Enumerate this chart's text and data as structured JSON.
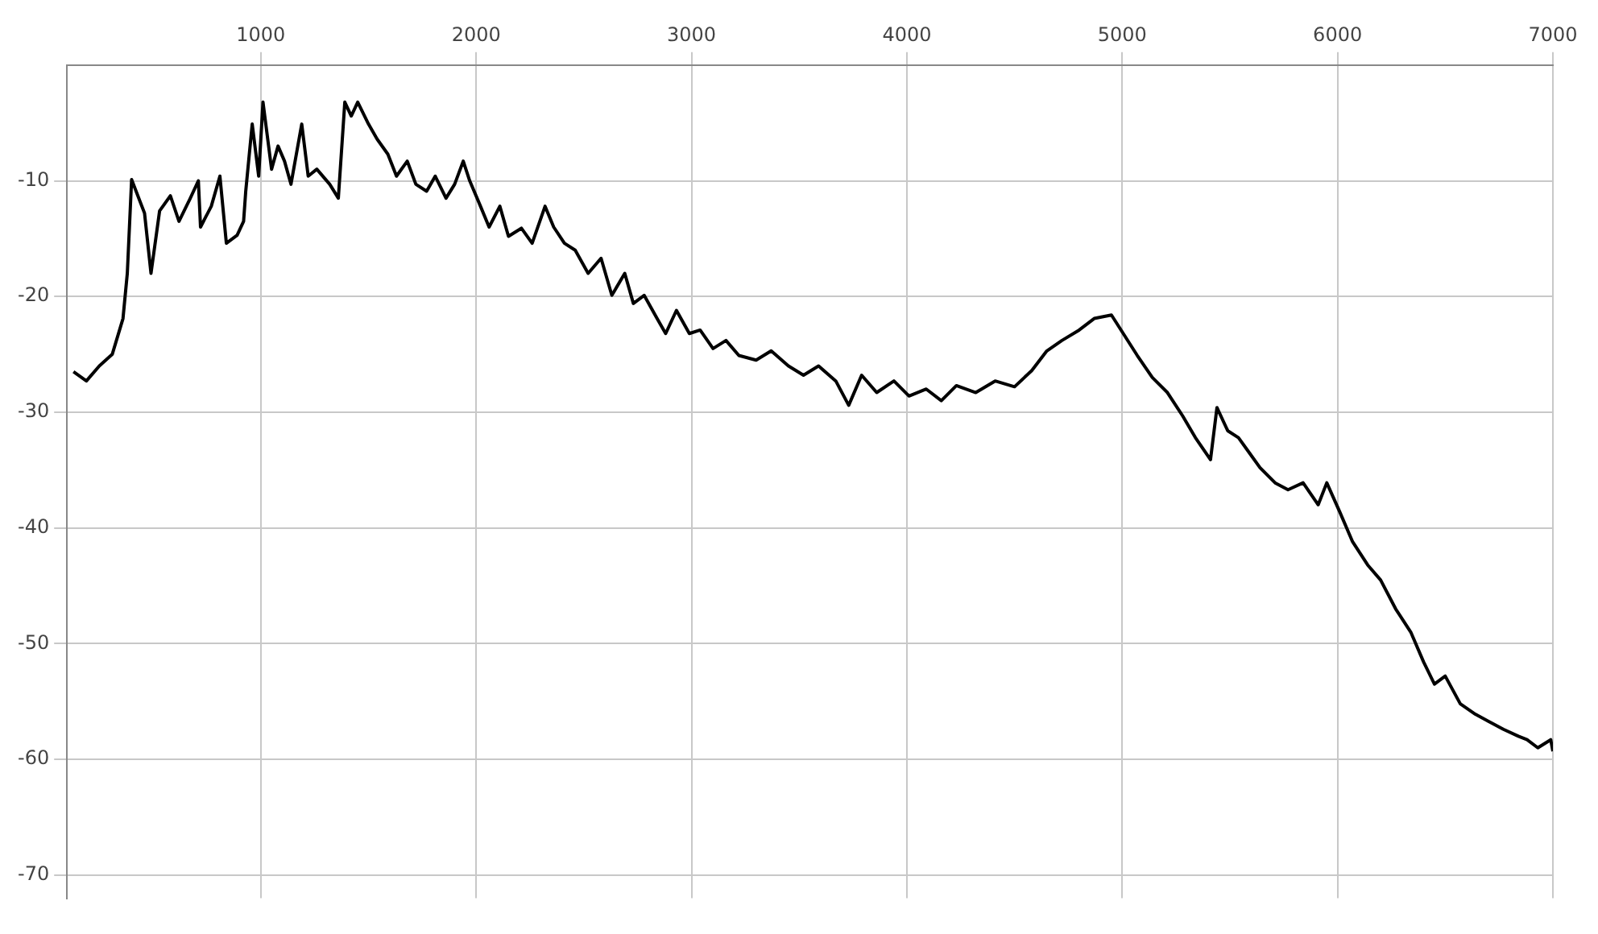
{
  "chart_data": {
    "type": "line",
    "x": [
      130,
      190,
      250,
      310,
      360,
      380,
      400,
      460,
      490,
      530,
      580,
      620,
      670,
      710,
      720,
      770,
      810,
      840,
      890,
      920,
      930,
      960,
      990,
      1010,
      1050,
      1080,
      1110,
      1140,
      1190,
      1220,
      1260,
      1320,
      1360,
      1390,
      1420,
      1450,
      1500,
      1540,
      1590,
      1630,
      1680,
      1720,
      1770,
      1810,
      1860,
      1900,
      1940,
      1970,
      2020,
      2060,
      2110,
      2150,
      2210,
      2260,
      2320,
      2360,
      2410,
      2460,
      2520,
      2580,
      2630,
      2690,
      2730,
      2780,
      2840,
      2880,
      2930,
      2990,
      3040,
      3100,
      3160,
      3220,
      3300,
      3370,
      3450,
      3520,
      3590,
      3670,
      3730,
      3790,
      3860,
      3940,
      4010,
      4090,
      4160,
      4230,
      4320,
      4410,
      4500,
      4580,
      4650,
      4720,
      4800,
      4870,
      4950,
      5070,
      5140,
      5210,
      5280,
      5340,
      5410,
      5440,
      5490,
      5540,
      5590,
      5640,
      5710,
      5770,
      5840,
      5910,
      5950,
      6010,
      6070,
      6140,
      6200,
      6270,
      6340,
      6400,
      6450,
      6500,
      6570,
      6640,
      6700,
      6770,
      6840,
      6880,
      6930,
      6990,
      7000
    ],
    "series": [
      {
        "color": "#000000",
        "values": [
          -26.5,
          -27.3,
          -26,
          -25,
          -21.9,
          -18,
          -9.9,
          -12.8,
          -18,
          -12.6,
          -11.3,
          -13.5,
          -11.6,
          -10,
          -14,
          -12.2,
          -9.6,
          -15.4,
          -14.7,
          -13.5,
          -10.9,
          -5.1,
          -9.6,
          -3.2,
          -9,
          -7,
          -8.3,
          -10.3,
          -5.1,
          -9.6,
          -9,
          -10.3,
          -11.5,
          -3.2,
          -4.4,
          -3.2,
          -5.1,
          -6.4,
          -7.7,
          -9.6,
          -8.3,
          -10.3,
          -10.9,
          -9.6,
          -11.5,
          -10.3,
          -8.3,
          -10,
          -12.2,
          -14,
          -12.2,
          -14.8,
          -14.1,
          -15.4,
          -12.2,
          -14,
          -15.4,
          -16,
          -18,
          -16.7,
          -19.9,
          -18,
          -20.6,
          -19.9,
          -21.9,
          -23.2,
          -21.2,
          -23.2,
          -22.9,
          -24.5,
          -23.8,
          -25.1,
          -25.5,
          -24.7,
          -26,
          -26.8,
          -26,
          -27.3,
          -29.4,
          -26.8,
          -28.3,
          -27.3,
          -28.6,
          -28,
          -29,
          -27.7,
          -28.3,
          -27.3,
          -27.8,
          -26.4,
          -24.7,
          -23.8,
          -22.9,
          -21.9,
          -21.6,
          -25.1,
          -27,
          -28.3,
          -30.3,
          -32.2,
          -34.1,
          -29.6,
          -31.6,
          -32.2,
          -33.5,
          -34.8,
          -36.1,
          -36.7,
          -36.1,
          -38,
          -36.1,
          -38.6,
          -41.2,
          -43.2,
          -44.5,
          -47,
          -49,
          -51.6,
          -53.5,
          -52.8,
          -55.2,
          -56.1,
          -56.7,
          -57.4,
          -58,
          -58.3,
          -59,
          -58.3,
          -59.3
        ]
      }
    ],
    "xlim": [
      100,
      7000
    ],
    "xticks": [
      1000,
      2000,
      3000,
      4000,
      5000,
      6000,
      7000
    ],
    "ylim": [
      -72,
      0
    ],
    "yticks": [
      -70,
      -60,
      -50,
      -40,
      -30,
      -20,
      -10
    ],
    "grid": true,
    "marker": "none",
    "line_style": "solid",
    "legend": false
  }
}
